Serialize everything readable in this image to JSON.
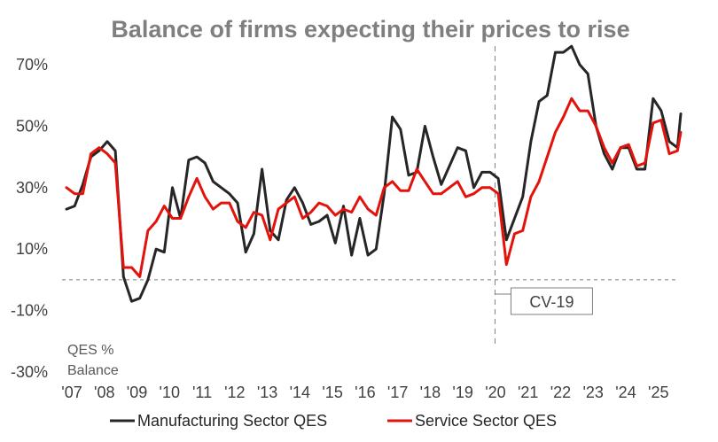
{
  "chart_data": {
    "type": "line",
    "title": "Balance of firms expecting their prices to rise",
    "ylabel_note": [
      "QES %",
      "Balance"
    ],
    "y_ticks": [
      "70%",
      "50%",
      "30%",
      "10%",
      "-10%",
      "-30%"
    ],
    "y_tick_values": [
      70,
      50,
      30,
      10,
      -10,
      -30
    ],
    "ylim": [
      -30,
      70
    ],
    "x_ticks": [
      "'07",
      "'08",
      "'09",
      "'10",
      "'11",
      "'12",
      "'13",
      "'14",
      "'15",
      "'16",
      "'17",
      "'18",
      "'19",
      "'20",
      "'21",
      "'22",
      "'23",
      "'24",
      "'25"
    ],
    "x_tick_values": [
      2007,
      2008,
      2009,
      2010,
      2011,
      2012,
      2013,
      2014,
      2015,
      2016,
      2017,
      2018,
      2019,
      2020,
      2021,
      2022,
      2023,
      2024,
      2025
    ],
    "xlim": [
      2007,
      2025.85
    ],
    "zero_line": 0,
    "annotation": {
      "label": "CV-19",
      "x": 2020.15
    },
    "legend_position": "bottom",
    "colors": {
      "manufacturing": "#262626",
      "services": "#e3120b",
      "axis_text": "#404040",
      "title": "#7f7f7f",
      "guide": "#7f7f7f"
    },
    "series": [
      {
        "name": "Manufacturing Sector QES",
        "color_key": "manufacturing",
        "points": [
          [
            2007.0,
            23
          ],
          [
            2007.25,
            24
          ],
          [
            2007.5,
            31
          ],
          [
            2007.75,
            40
          ],
          [
            2008.0,
            42
          ],
          [
            2008.25,
            45
          ],
          [
            2008.5,
            42
          ],
          [
            2008.75,
            1
          ],
          [
            2009.0,
            -7
          ],
          [
            2009.25,
            -6
          ],
          [
            2009.5,
            0
          ],
          [
            2009.75,
            10
          ],
          [
            2010.0,
            9
          ],
          [
            2010.25,
            30
          ],
          [
            2010.5,
            20
          ],
          [
            2010.75,
            39
          ],
          [
            2011.0,
            40
          ],
          [
            2011.25,
            38
          ],
          [
            2011.5,
            32
          ],
          [
            2011.75,
            30
          ],
          [
            2012.0,
            28
          ],
          [
            2012.25,
            25
          ],
          [
            2012.5,
            9
          ],
          [
            2012.75,
            15
          ],
          [
            2013.0,
            36
          ],
          [
            2013.25,
            16
          ],
          [
            2013.5,
            13
          ],
          [
            2013.75,
            26
          ],
          [
            2014.0,
            30
          ],
          [
            2014.25,
            25
          ],
          [
            2014.5,
            18
          ],
          [
            2014.75,
            19
          ],
          [
            2015.0,
            21
          ],
          [
            2015.25,
            12
          ],
          [
            2015.5,
            24
          ],
          [
            2015.75,
            8
          ],
          [
            2016.0,
            20
          ],
          [
            2016.25,
            8
          ],
          [
            2016.5,
            10
          ],
          [
            2016.75,
            28
          ],
          [
            2017.0,
            53
          ],
          [
            2017.25,
            49
          ],
          [
            2017.5,
            34
          ],
          [
            2017.75,
            35
          ],
          [
            2018.0,
            50
          ],
          [
            2018.25,
            40
          ],
          [
            2018.5,
            31
          ],
          [
            2018.75,
            37
          ],
          [
            2019.0,
            43
          ],
          [
            2019.25,
            42
          ],
          [
            2019.5,
            30
          ],
          [
            2019.75,
            35
          ],
          [
            2020.0,
            35
          ],
          [
            2020.25,
            33
          ],
          [
            2020.5,
            13
          ],
          [
            2020.75,
            20
          ],
          [
            2021.0,
            27
          ],
          [
            2021.25,
            45
          ],
          [
            2021.5,
            58
          ],
          [
            2021.75,
            60
          ],
          [
            2022.0,
            74
          ],
          [
            2022.25,
            74
          ],
          [
            2022.5,
            76
          ],
          [
            2022.75,
            70
          ],
          [
            2023.0,
            67
          ],
          [
            2023.25,
            50
          ],
          [
            2023.5,
            41
          ],
          [
            2023.75,
            36
          ],
          [
            2024.0,
            43
          ],
          [
            2024.25,
            43
          ],
          [
            2024.5,
            36
          ],
          [
            2024.75,
            36
          ],
          [
            2025.0,
            59
          ],
          [
            2025.25,
            55
          ],
          [
            2025.5,
            45
          ],
          [
            2025.75,
            43
          ],
          [
            2025.85,
            54
          ]
        ]
      },
      {
        "name": "Service Sector QES",
        "color_key": "services",
        "points": [
          [
            2007.0,
            30
          ],
          [
            2007.25,
            28
          ],
          [
            2007.5,
            28
          ],
          [
            2007.75,
            41
          ],
          [
            2008.0,
            43
          ],
          [
            2008.25,
            41
          ],
          [
            2008.5,
            38
          ],
          [
            2008.75,
            4
          ],
          [
            2009.0,
            4
          ],
          [
            2009.25,
            1
          ],
          [
            2009.5,
            16
          ],
          [
            2009.75,
            19
          ],
          [
            2010.0,
            24
          ],
          [
            2010.25,
            20
          ],
          [
            2010.5,
            20
          ],
          [
            2010.75,
            27
          ],
          [
            2011.0,
            33
          ],
          [
            2011.25,
            27
          ],
          [
            2011.5,
            23
          ],
          [
            2011.75,
            25
          ],
          [
            2012.0,
            25
          ],
          [
            2012.25,
            19
          ],
          [
            2012.5,
            17
          ],
          [
            2012.75,
            22
          ],
          [
            2013.0,
            21
          ],
          [
            2013.25,
            13
          ],
          [
            2013.5,
            23
          ],
          [
            2013.75,
            25
          ],
          [
            2014.0,
            27
          ],
          [
            2014.25,
            20
          ],
          [
            2014.5,
            22
          ],
          [
            2014.75,
            25
          ],
          [
            2015.0,
            24
          ],
          [
            2015.25,
            21
          ],
          [
            2015.5,
            23
          ],
          [
            2015.75,
            22
          ],
          [
            2016.0,
            27
          ],
          [
            2016.25,
            23
          ],
          [
            2016.5,
            21
          ],
          [
            2016.75,
            30
          ],
          [
            2017.0,
            32
          ],
          [
            2017.25,
            29
          ],
          [
            2017.5,
            29
          ],
          [
            2017.75,
            36
          ],
          [
            2018.0,
            32
          ],
          [
            2018.25,
            28
          ],
          [
            2018.5,
            28
          ],
          [
            2018.75,
            30
          ],
          [
            2019.0,
            32
          ],
          [
            2019.25,
            27
          ],
          [
            2019.5,
            28
          ],
          [
            2019.75,
            30
          ],
          [
            2020.0,
            30
          ],
          [
            2020.25,
            28
          ],
          [
            2020.5,
            5
          ],
          [
            2020.75,
            15
          ],
          [
            2021.0,
            16
          ],
          [
            2021.25,
            27
          ],
          [
            2021.5,
            32
          ],
          [
            2021.75,
            40
          ],
          [
            2022.0,
            48
          ],
          [
            2022.25,
            53
          ],
          [
            2022.5,
            59
          ],
          [
            2022.75,
            55
          ],
          [
            2023.0,
            55
          ],
          [
            2023.25,
            50
          ],
          [
            2023.5,
            43
          ],
          [
            2023.75,
            38
          ],
          [
            2024.0,
            43
          ],
          [
            2024.25,
            44
          ],
          [
            2024.5,
            37
          ],
          [
            2024.75,
            38
          ],
          [
            2025.0,
            51
          ],
          [
            2025.25,
            52
          ],
          [
            2025.5,
            41
          ],
          [
            2025.75,
            42
          ],
          [
            2025.85,
            48
          ]
        ]
      }
    ]
  }
}
